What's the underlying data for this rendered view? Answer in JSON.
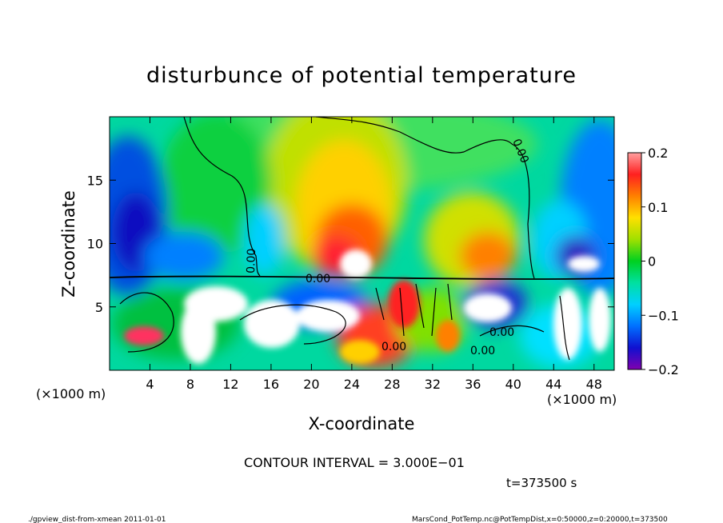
{
  "chart_data": {
    "type": "heatmap",
    "title": "disturbunce of potential temperature",
    "xlabel": "X-coordinate",
    "ylabel": "Z-coordinate",
    "x_unit": "(×1000 m)",
    "y_unit": "(×1000 m)",
    "xlim": [
      0,
      50
    ],
    "ylim": [
      0,
      20
    ],
    "xticks": [
      4,
      8,
      12,
      16,
      20,
      24,
      28,
      32,
      36,
      40,
      44,
      48
    ],
    "yticks": [
      5,
      10,
      15
    ],
    "colorbar": {
      "min": -0.2,
      "max": 0.2,
      "tick_labels": [
        "0.2",
        "0.1",
        "0",
        "−0.1",
        "−0.2"
      ],
      "tick_values": [
        0.2,
        0.1,
        0,
        -0.1,
        -0.2
      ]
    },
    "contour_labels": [
      "0.00",
      "0.00",
      "0.00",
      "0.00",
      "0.00",
      "0.00"
    ],
    "contour_interval_text": "CONTOUR INTERVAL = 3.000E−01",
    "time_text": "t=373500 s",
    "footer_left": "./gpview_dist-from-xmean  2011-01-01",
    "footer_right": "MarsCond_PotTemp.nc@PotTempDist,x=0:50000,z=0:20000,t=373500"
  }
}
